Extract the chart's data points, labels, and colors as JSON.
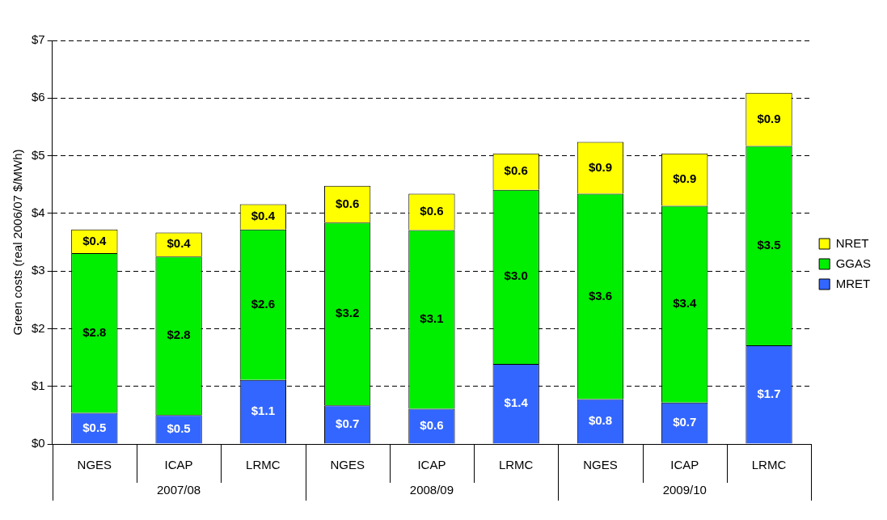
{
  "chart_data": {
    "type": "bar",
    "ylabel": "Green costs (real 2006/07 $/MWh)",
    "categories": [
      "NGES",
      "ICAP",
      "LRMC",
      "NGES",
      "ICAP",
      "LRMC",
      "NGES",
      "ICAP",
      "LRMC"
    ],
    "annotations": [
      "2007/08",
      "2008/09",
      "2009/10"
    ],
    "stacked": true,
    "series": [
      {
        "name": "MRET",
        "color": "#3366ff",
        "values": [
          0.54,
          0.5,
          1.11,
          0.67,
          0.61,
          1.39,
          0.78,
          0.72,
          1.71
        ],
        "value_labels": [
          "$0.5",
          "$0.5",
          "$1.1",
          "$0.7",
          "$0.6",
          "$1.4",
          "$0.8",
          "$0.7",
          "$1.7"
        ]
      },
      {
        "name": "GGAS",
        "color": "#00ee00",
        "values": [
          2.77,
          2.75,
          2.61,
          3.17,
          3.1,
          3.02,
          3.56,
          3.41,
          3.46
        ],
        "value_labels": [
          "$2.8",
          "$2.8",
          "$2.6",
          "$3.2",
          "$3.1",
          "$3.0",
          "$3.6",
          "$3.4",
          "$3.5"
        ]
      },
      {
        "name": "NRET",
        "color": "#ffff00",
        "values": [
          0.41,
          0.42,
          0.44,
          0.64,
          0.63,
          0.63,
          0.9,
          0.91,
          0.92
        ],
        "value_labels": [
          "$0.4",
          "$0.4",
          "$0.4",
          "$0.6",
          "$0.6",
          "$0.6",
          "$0.9",
          "$0.9",
          "$0.9"
        ]
      }
    ],
    "ylim": [
      0,
      7
    ],
    "yticks": [
      {
        "value": 0,
        "label": "$0"
      },
      {
        "value": 1,
        "label": "$1"
      },
      {
        "value": 2,
        "label": "$2"
      },
      {
        "value": 3,
        "label": "$3"
      },
      {
        "value": 4,
        "label": "$4"
      },
      {
        "value": 5,
        "label": "$5"
      },
      {
        "value": 6,
        "label": "$6"
      },
      {
        "value": 7,
        "label": "$7"
      }
    ],
    "grid": "y",
    "legend": "right"
  }
}
